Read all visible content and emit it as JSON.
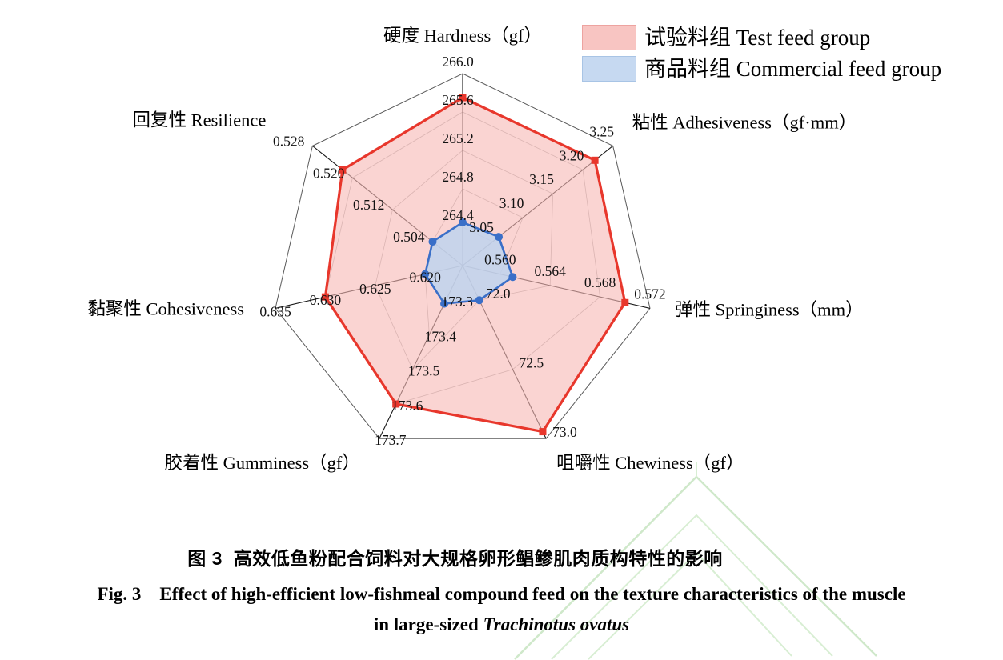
{
  "figure": {
    "caption_zh": "图 3  高效低鱼粉配合饲料对大规格卵形鲳鲹肌肉质构特性的影响",
    "caption_en_line1": "Fig. 3    Effect of high-efficient low-fishmeal compound feed on the texture characteristics of the muscle",
    "caption_en_line2_prefix": "in large-sized ",
    "caption_en_species": "Trachinotus ovatus"
  },
  "legend": {
    "items": [
      {
        "label": "试验料组 Test feed group",
        "swatch_fill": "#f8c5c2",
        "swatch_border": "#eda3a0"
      },
      {
        "label": "商品料组 Commercial feed group",
        "swatch_fill": "#c6d9f1",
        "swatch_border": "#a8c4e5"
      }
    ]
  },
  "chart_data": {
    "type": "radar",
    "grid": true,
    "axes": [
      {
        "label": "硬度 Hardness（gf）",
        "range": [
          264.0,
          266.0
        ],
        "ticks": [
          "264.4",
          "264.8",
          "265.2",
          "265.6",
          "266.0"
        ]
      },
      {
        "label": "粘性 Adhesiveness（gf·mm）",
        "range": [
          3.0,
          3.25
        ],
        "ticks": [
          "3.05",
          "3.10",
          "3.15",
          "3.20",
          "3.25"
        ]
      },
      {
        "label": "弹性 Springiness（mm）",
        "range": [
          0.557,
          0.572
        ],
        "ticks": [
          "0.560",
          "0.564",
          "0.568",
          "0.572"
        ]
      },
      {
        "label": "咀嚼性 Chewiness（gf）",
        "range": [
          71.75,
          73.0
        ],
        "ticks": [
          "72.0",
          "72.5",
          "73.0"
        ]
      },
      {
        "label": "胶着性 Gumminess（gf）",
        "range": [
          173.2,
          173.7
        ],
        "ticks": [
          "173.3",
          "173.4",
          "173.5",
          "173.6",
          "173.7"
        ]
      },
      {
        "label": "黏聚性 Cohesiveness",
        "range": [
          0.61625,
          0.635
        ],
        "ticks": [
          "0.620",
          "0.625",
          "0.630",
          "0.635"
        ]
      },
      {
        "label": "回复性 Resilience",
        "range": [
          0.498,
          0.528
        ],
        "ticks": [
          "0.504",
          "0.512",
          "0.520",
          "0.528"
        ]
      }
    ],
    "series": [
      {
        "name": "试验料组 Test feed group",
        "stroke": "#e8372c",
        "fill": "#f7b9b6",
        "fill_opacity": 0.62,
        "stroke_width": 3.2,
        "marker": "square",
        "values": [
          265.75,
          3.22,
          0.57,
          72.95,
          173.6,
          0.63,
          0.522
        ]
      },
      {
        "name": "商品料组 Commercial feed group",
        "stroke": "#3a6fc8",
        "fill": "#bed3ee",
        "fill_opacity": 0.85,
        "stroke_width": 2.6,
        "marker": "circle",
        "values": [
          264.45,
          3.06,
          0.561,
          72.0,
          173.31,
          0.62,
          0.504
        ]
      }
    ]
  }
}
